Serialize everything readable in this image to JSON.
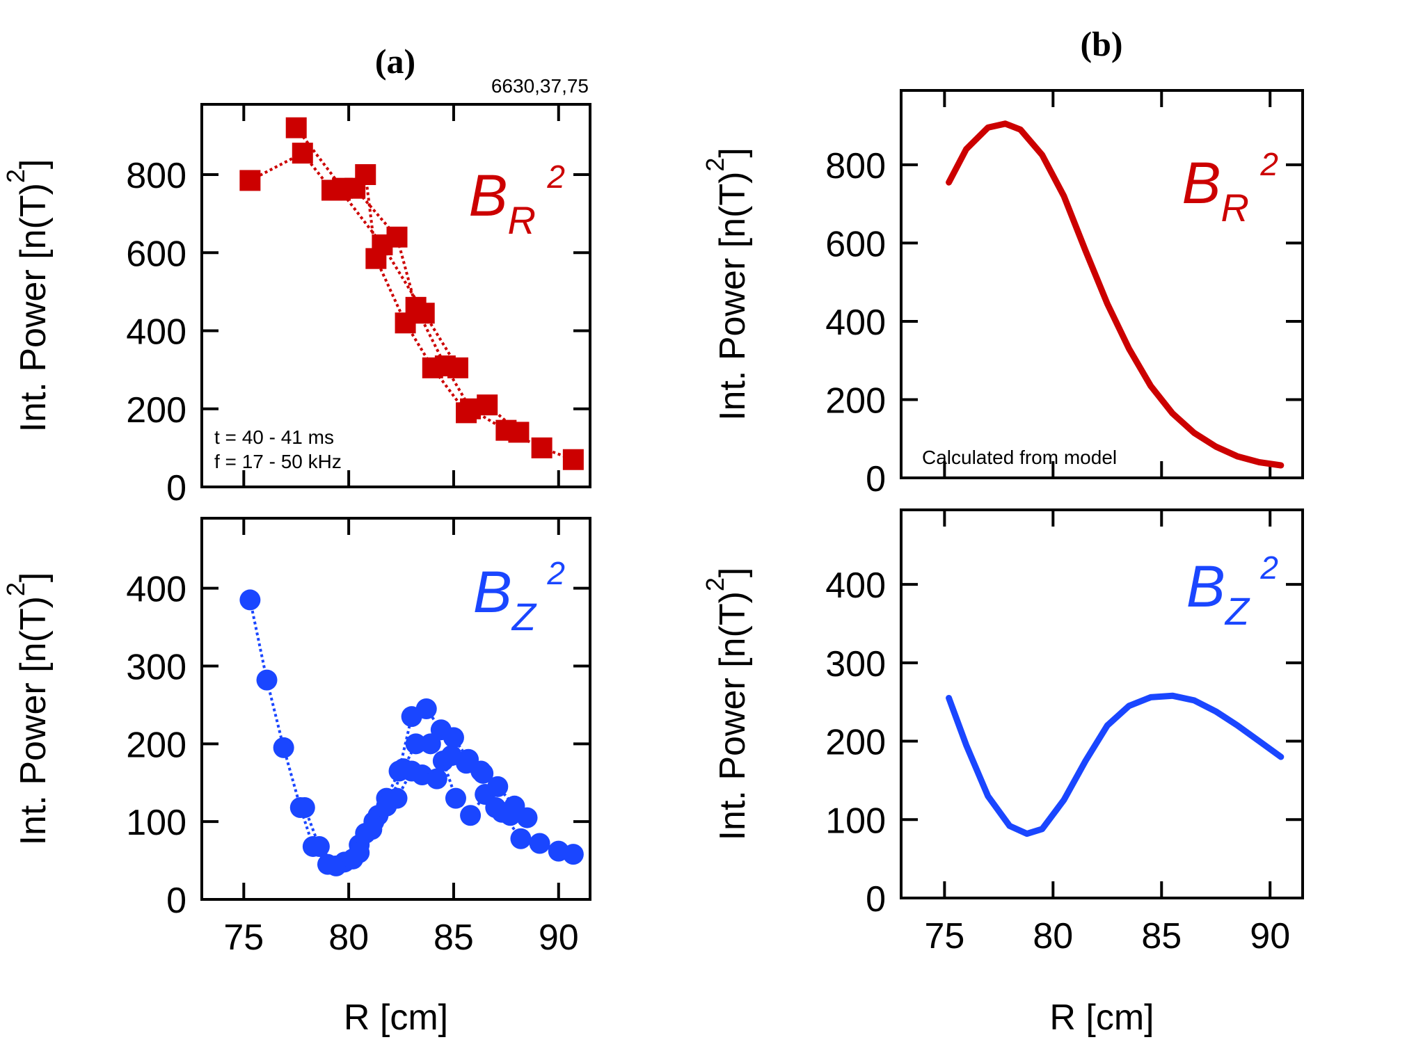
{
  "panel_labels": {
    "a": "(a)",
    "b": "(b)"
  },
  "shot_label": "6630,37,75",
  "chart_data": [
    {
      "id": "a-top",
      "type": "scatter",
      "title": "",
      "xlabel": "",
      "ylabel": "Int. Power [n(T)²]",
      "ylabel_parts": {
        "main": "Int. Power [n(T)",
        "sup": "2",
        "end": "]"
      },
      "xlim": [
        73,
        91.5
      ],
      "ylim": [
        0,
        980
      ],
      "xticks": [
        75,
        80,
        85,
        90
      ],
      "yticks": [
        0,
        200,
        400,
        600,
        800
      ],
      "ytick_labels": [
        "0",
        "200",
        "400",
        "600",
        "800"
      ],
      "color": "#cc0000",
      "marker": "square",
      "series_label": {
        "main": "B",
        "sub": "R",
        "sup": "2"
      },
      "annotations": [
        "t = 40 - 41 ms",
        "f = 17 - 50 kHz"
      ],
      "series": [
        {
          "name": "s1",
          "x": [
            75.3,
            77.8,
            79.2,
            80.8,
            81.3,
            82.7,
            84.0,
            85.6,
            86.6,
            88.1
          ],
          "y": [
            785,
            855,
            760,
            800,
            585,
            420,
            305,
            190,
            210,
            140
          ]
        },
        {
          "name": "s2",
          "x": [
            77.5,
            79.7,
            80.3,
            82.3,
            83.2,
            84.6,
            85.8,
            87.5,
            89.2,
            90.7
          ],
          "y": [
            920,
            765,
            765,
            640,
            460,
            310,
            200,
            145,
            100,
            70
          ]
        },
        {
          "name": "s3",
          "x": [
            79.6,
            81.6,
            83.6,
            85.2
          ],
          "y": [
            760,
            620,
            445,
            305
          ]
        }
      ]
    },
    {
      "id": "a-bottom",
      "type": "scatter",
      "title": "",
      "xlabel": "R [cm]",
      "ylabel": "Int. Power [n(T)²]",
      "ylabel_parts": {
        "main": "Int. Power [n(T)",
        "sup": "2",
        "end": "]"
      },
      "xlim": [
        73,
        91.5
      ],
      "ylim": [
        0,
        490
      ],
      "xticks": [
        75,
        80,
        85,
        90
      ],
      "xtick_labels": [
        "75",
        "80",
        "85",
        "90"
      ],
      "yticks": [
        0,
        100,
        200,
        300,
        400
      ],
      "ytick_labels": [
        "0",
        "100",
        "200",
        "300",
        "400"
      ],
      "color": "#1a46ff",
      "marker": "circle",
      "series_label": {
        "main": "B",
        "sub": "Z",
        "sup": "2"
      },
      "series": [
        {
          "name": "s1",
          "x": [
            75.3,
            76.1,
            76.9,
            77.7,
            78.3,
            79.0,
            79.8,
            80.5,
            81.2,
            81.8,
            82.4,
            83.0,
            83.7,
            84.4,
            85.0,
            85.7,
            86.4,
            87.1,
            87.9,
            88.5
          ],
          "y": [
            385,
            282,
            195,
            118,
            68,
            45,
            48,
            70,
            100,
            130,
            165,
            235,
            245,
            218,
            208,
            180,
            162,
            145,
            120,
            105
          ]
        },
        {
          "name": "s2",
          "x": [
            77.9,
            78.6,
            79.4,
            80.2,
            80.8,
            81.4,
            82.0,
            82.6,
            83.2,
            83.9,
            84.5,
            85.1,
            85.8,
            86.5,
            87.3,
            88.2,
            89.1,
            90.0,
            90.7
          ],
          "y": [
            118,
            68,
            43,
            52,
            85,
            108,
            128,
            168,
            200,
            200,
            178,
            130,
            108,
            135,
            112,
            78,
            72,
            62,
            58
          ]
        },
        {
          "name": "s3",
          "x": [
            80.5,
            81.1,
            81.8,
            82.3,
            83.0,
            83.5,
            84.2,
            84.9,
            85.6,
            86.3,
            87.0,
            87.7
          ],
          "y": [
            60,
            90,
            120,
            130,
            165,
            160,
            155,
            185,
            175,
            165,
            118,
            108
          ]
        }
      ]
    },
    {
      "id": "b-top",
      "type": "line",
      "title": "",
      "xlabel": "",
      "ylabel": "Int. Power [n(T)²]",
      "ylabel_parts": {
        "main": "Int. Power [n(T)",
        "sup": "2",
        "end": "]"
      },
      "xlim": [
        73,
        91.5
      ],
      "ylim": [
        0,
        990
      ],
      "xticks": [
        75,
        80,
        85,
        90
      ],
      "yticks": [
        0,
        200,
        400,
        600,
        800
      ],
      "ytick_labels": [
        "0",
        "200",
        "400",
        "600",
        "800"
      ],
      "color": "#cc0000",
      "series_label": {
        "main": "B",
        "sub": "R",
        "sup": "2"
      },
      "annotations": [
        "Calculated from model"
      ],
      "series": [
        {
          "name": "model",
          "x": [
            75.2,
            76,
            77,
            77.8,
            78.5,
            79.5,
            80.5,
            81.5,
            82.5,
            83.5,
            84.5,
            85.5,
            86.5,
            87.5,
            88.5,
            89.5,
            90.5
          ],
          "y": [
            755,
            840,
            895,
            905,
            890,
            825,
            720,
            580,
            445,
            330,
            235,
            165,
            115,
            80,
            55,
            40,
            32
          ]
        }
      ]
    },
    {
      "id": "b-bottom",
      "type": "line",
      "title": "",
      "xlabel": "R [cm]",
      "ylabel": "Int. Power [n(T)²]",
      "ylabel_parts": {
        "main": "Int. Power [n(T)",
        "sup": "2",
        "end": "]"
      },
      "xlim": [
        73,
        91.5
      ],
      "ylim": [
        0,
        495
      ],
      "xticks": [
        75,
        80,
        85,
        90
      ],
      "xtick_labels": [
        "75",
        "80",
        "85",
        "90"
      ],
      "yticks": [
        0,
        100,
        200,
        300,
        400
      ],
      "ytick_labels": [
        "0",
        "100",
        "200",
        "300",
        "400"
      ],
      "color": "#1a46ff",
      "series_label": {
        "main": "B",
        "sub": "Z",
        "sup": "2"
      },
      "series": [
        {
          "name": "model",
          "x": [
            75.2,
            76,
            77,
            78,
            78.8,
            79.5,
            80.5,
            81.5,
            82.5,
            83.5,
            84.5,
            85.5,
            86.5,
            87.5,
            88.5,
            89.5,
            90.5
          ],
          "y": [
            255,
            195,
            130,
            92,
            82,
            88,
            125,
            175,
            220,
            245,
            256,
            258,
            252,
            238,
            220,
            200,
            180
          ]
        }
      ]
    }
  ]
}
